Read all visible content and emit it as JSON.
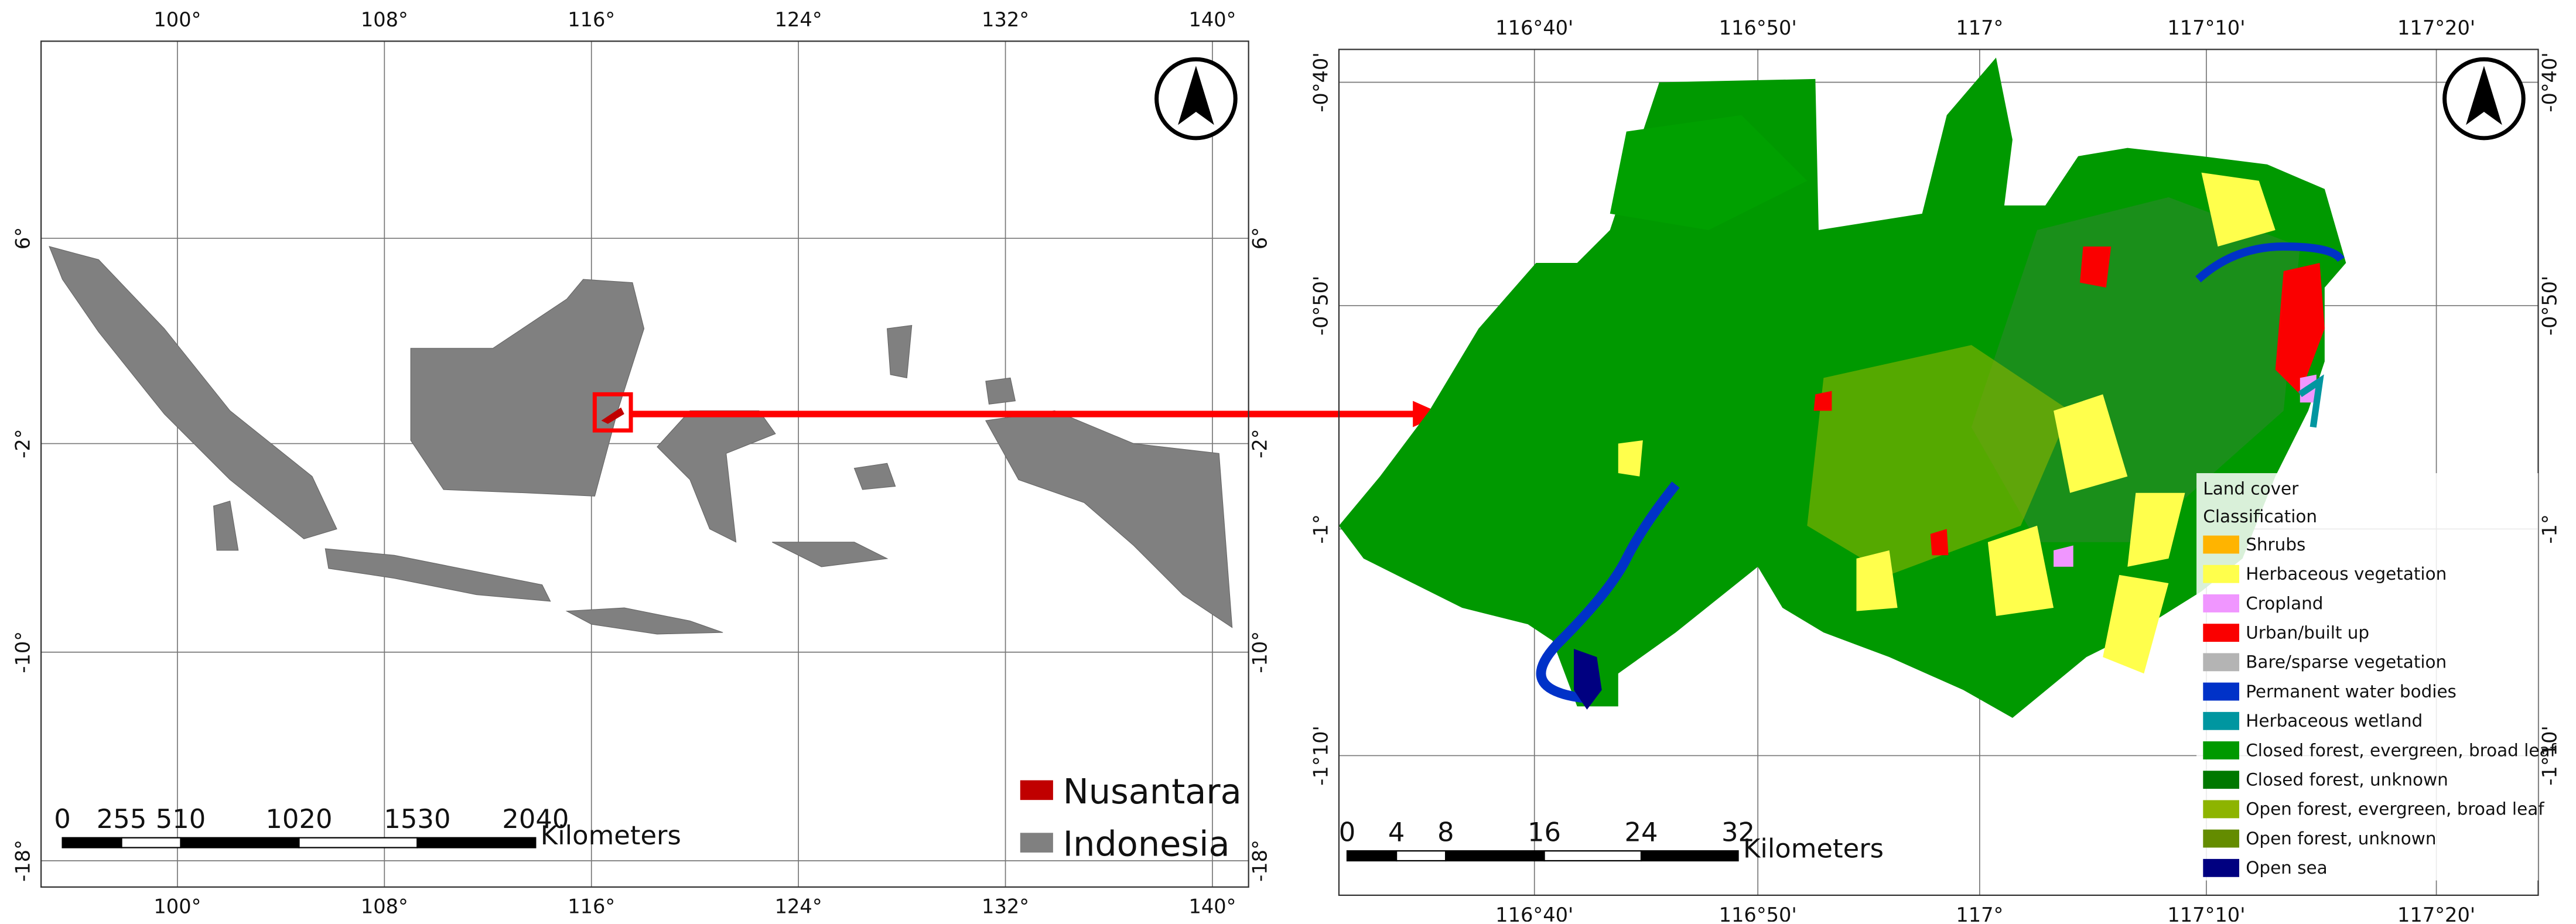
{
  "left_map": {
    "lon_ticks": [
      "100°",
      "108°",
      "116°",
      "124°",
      "132°",
      "140°"
    ],
    "lat_ticks": [
      "6°",
      "-2°",
      "-10°",
      "-18°"
    ],
    "scale_labels": [
      "0",
      "255",
      "510",
      "1020",
      "1530",
      "2040"
    ],
    "scale_unit": "Kilometers",
    "legend": [
      {
        "label": "Nusantara",
        "color": "#c00000"
      },
      {
        "label": "Indonesia",
        "color": "#808080"
      }
    ]
  },
  "right_map": {
    "lon_ticks": [
      "116°40'",
      "116°50'",
      "117°",
      "117°10'",
      "117°20'"
    ],
    "lat_ticks": [
      "-0°40'",
      "-0°50'",
      "-1°",
      "-1°10'"
    ],
    "scale_labels": [
      "0",
      "4",
      "8",
      "16",
      "24",
      "32"
    ],
    "scale_unit": "Kilometers",
    "legend_title": "Land cover",
    "legend_subtitle": "Classification",
    "legend": [
      {
        "label": "Shrubs",
        "color": "#ffb400"
      },
      {
        "label": "Herbaceous vegetation",
        "color": "#ffff4c"
      },
      {
        "label": "Cropland",
        "color": "#f096ff"
      },
      {
        "label": "Urban/built up",
        "color": "#fa0000"
      },
      {
        "label": "Bare/sparse vegetation",
        "color": "#b4b4b4"
      },
      {
        "label": "Permanent water bodies",
        "color": "#0032c8"
      },
      {
        "label": "Herbaceous wetland",
        "color": "#0096a0"
      },
      {
        "label": "Closed forest, evergreen, broad leaf",
        "color": "#009900"
      },
      {
        "label": "Closed forest, unknown",
        "color": "#007800"
      },
      {
        "label": "Open forest, evergreen, broad leaf",
        "color": "#8db400"
      },
      {
        "label": "Open forest, unknown",
        "color": "#648c00"
      },
      {
        "label": "Open sea",
        "color": "#000080"
      }
    ]
  }
}
